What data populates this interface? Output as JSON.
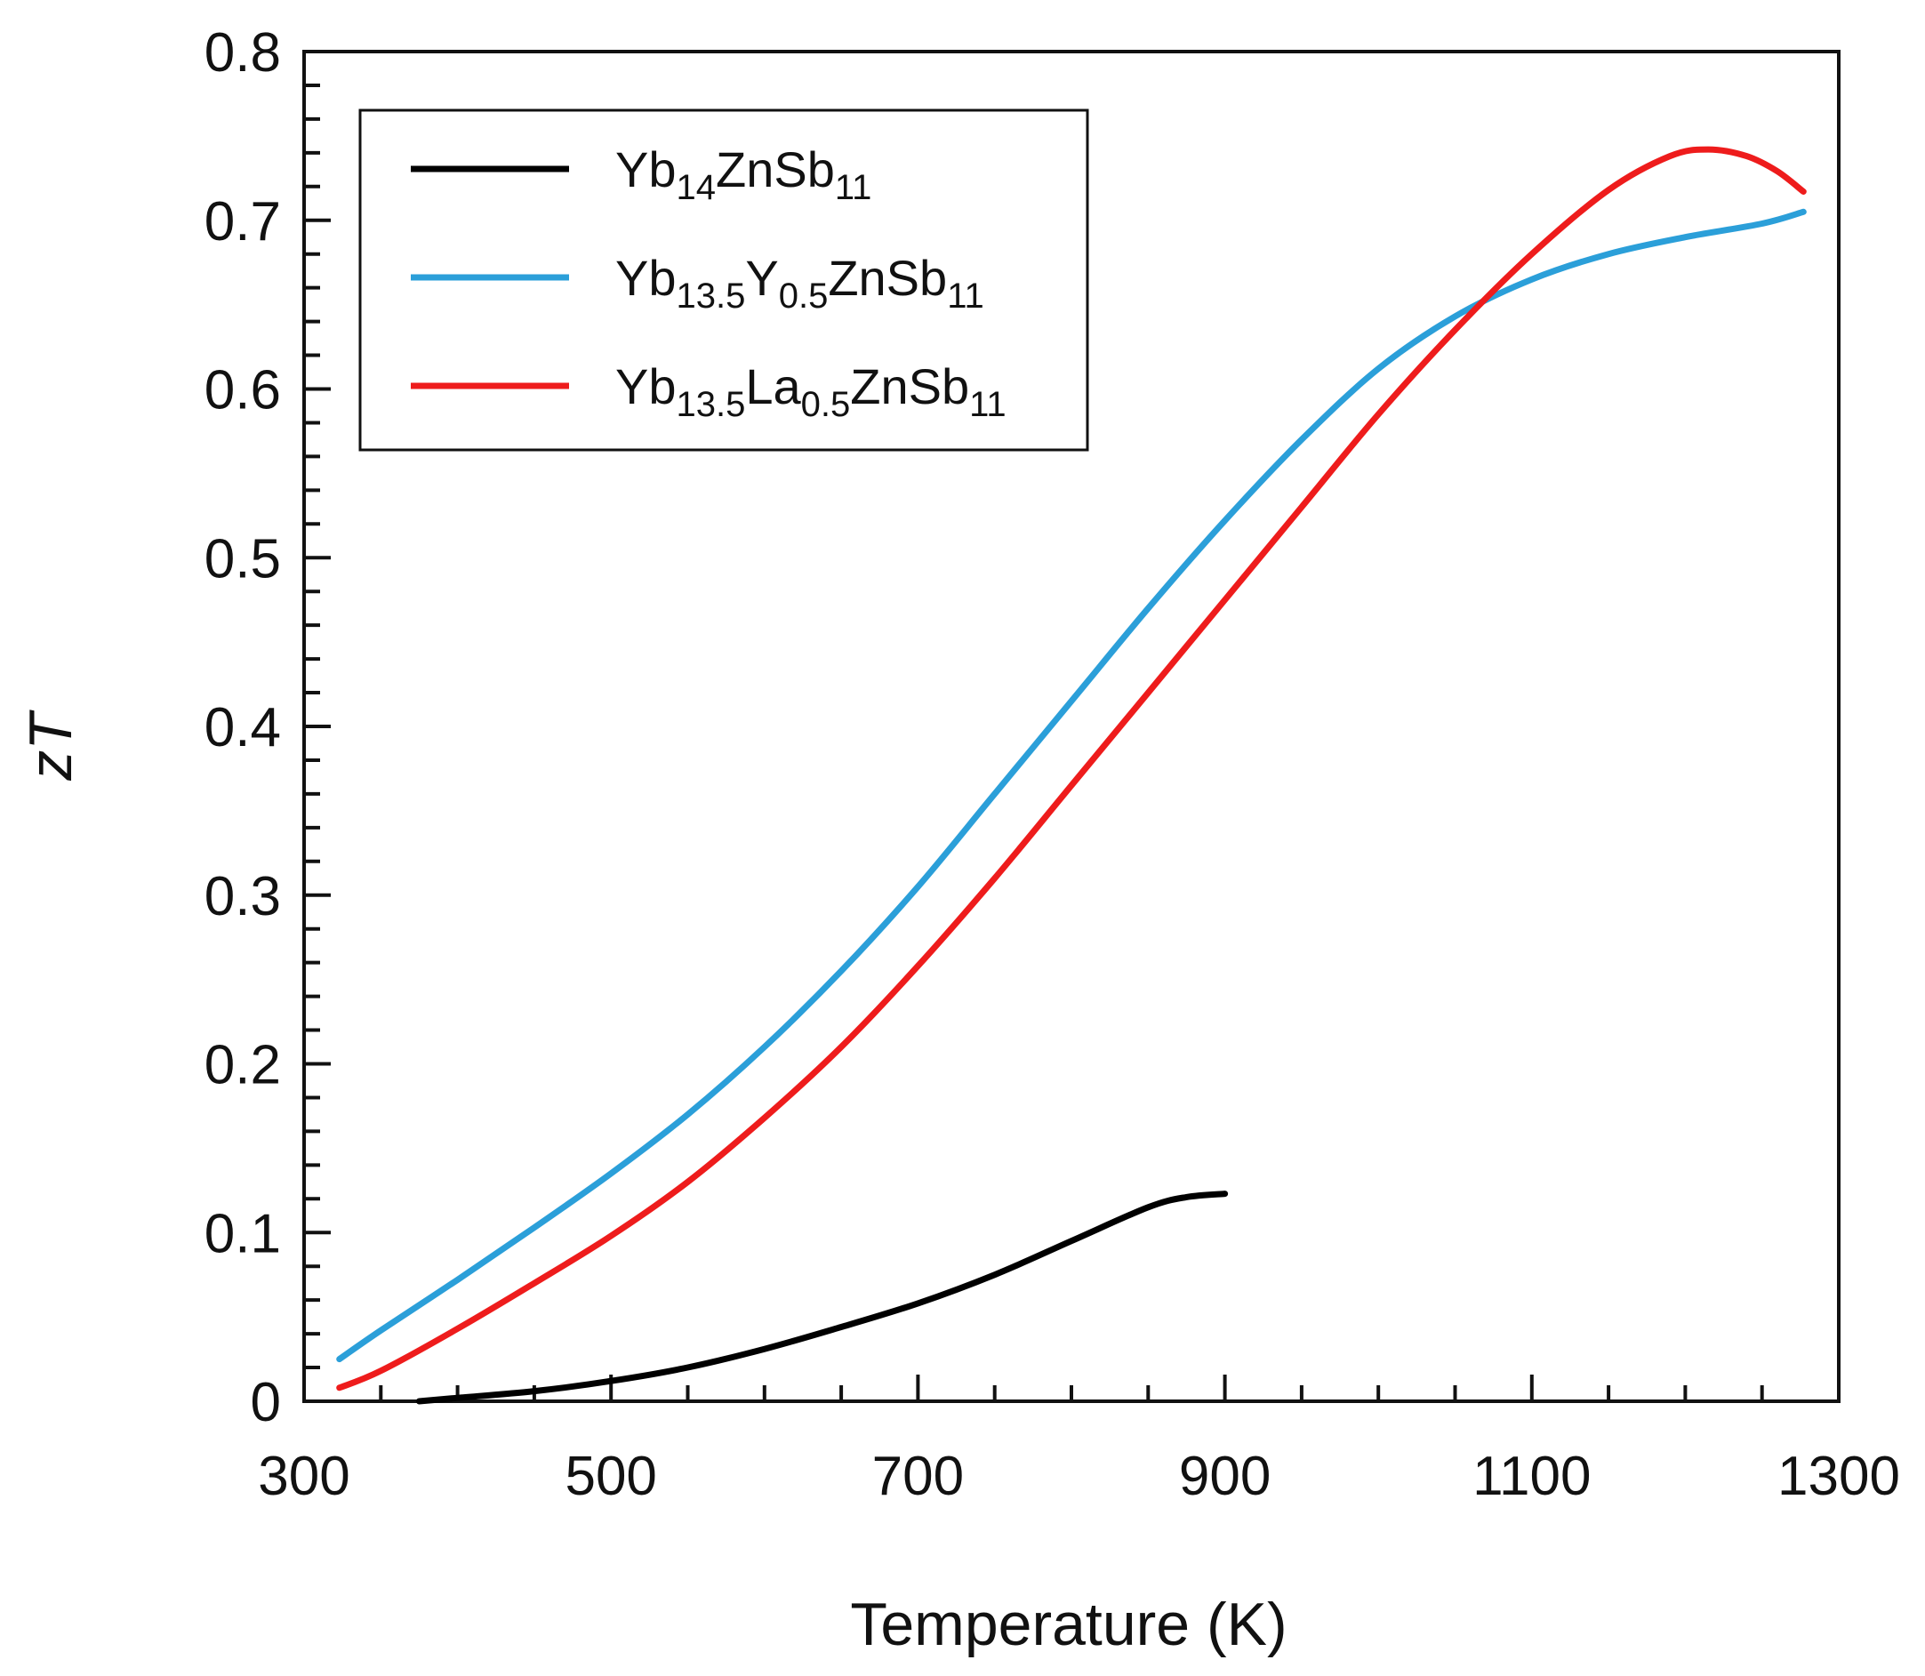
{
  "chart_data": {
    "type": "line",
    "title": "",
    "xlabel": "Temperature (K)",
    "ylabel_prefix": "z",
    "ylabel_italic": "T",
    "xlim": [
      300,
      1300
    ],
    "ylim": [
      0,
      0.8
    ],
    "xticks": [
      "300",
      "500",
      "700",
      "900",
      "1100",
      "1300"
    ],
    "yticks": [
      "0",
      "0.1",
      "0.2",
      "0.3",
      "0.4",
      "0.5",
      "0.6",
      "0.7",
      "0.8"
    ],
    "grid": false,
    "legend_position": "top-left",
    "series": [
      {
        "name": "Yb14ZnSb11",
        "label_parts": [
          [
            "Yb",
            ""
          ],
          [
            "14",
            "sub"
          ],
          [
            "ZnSb",
            ""
          ],
          [
            "11",
            "sub"
          ]
        ],
        "color": "#000000",
        "x": [
          375,
          400,
          450,
          500,
          550,
          600,
          650,
          700,
          750,
          800,
          850,
          875,
          900
        ],
        "y": [
          0.0,
          0.002,
          0.006,
          0.012,
          0.02,
          0.031,
          0.044,
          0.058,
          0.075,
          0.095,
          0.115,
          0.121,
          0.123
        ]
      },
      {
        "name": "Yb13.5Y0.5ZnSb11",
        "label_parts": [
          [
            "Yb",
            ""
          ],
          [
            "13.5",
            "sub"
          ],
          [
            "Y",
            ""
          ],
          [
            "0.5",
            "sub"
          ],
          [
            "ZnSb",
            ""
          ],
          [
            "11",
            "sub"
          ]
        ],
        "color": "#2b9fd9",
        "x": [
          323,
          350,
          400,
          450,
          500,
          550,
          600,
          650,
          700,
          750,
          800,
          850,
          900,
          950,
          1000,
          1050,
          1100,
          1150,
          1200,
          1250,
          1277
        ],
        "y": [
          0.025,
          0.042,
          0.072,
          0.103,
          0.135,
          0.17,
          0.21,
          0.255,
          0.305,
          0.36,
          0.415,
          0.47,
          0.522,
          0.57,
          0.612,
          0.643,
          0.665,
          0.68,
          0.69,
          0.698,
          0.705
        ]
      },
      {
        "name": "Yb13.5La0.5ZnSb11",
        "label_parts": [
          [
            "Yb",
            ""
          ],
          [
            "13.5",
            "sub"
          ],
          [
            "La",
            ""
          ],
          [
            "0.5",
            "sub"
          ],
          [
            "ZnSb",
            ""
          ],
          [
            "11",
            "sub"
          ]
        ],
        "color": "#ee1c1c",
        "x": [
          323,
          350,
          400,
          450,
          500,
          550,
          600,
          650,
          700,
          750,
          800,
          850,
          900,
          950,
          1000,
          1050,
          1100,
          1150,
          1190,
          1215,
          1240,
          1260,
          1277
        ],
        "y": [
          0.008,
          0.018,
          0.043,
          0.07,
          0.098,
          0.13,
          0.168,
          0.21,
          0.258,
          0.31,
          0.365,
          0.42,
          0.475,
          0.53,
          0.585,
          0.635,
          0.68,
          0.718,
          0.738,
          0.742,
          0.738,
          0.729,
          0.717
        ]
      }
    ]
  }
}
